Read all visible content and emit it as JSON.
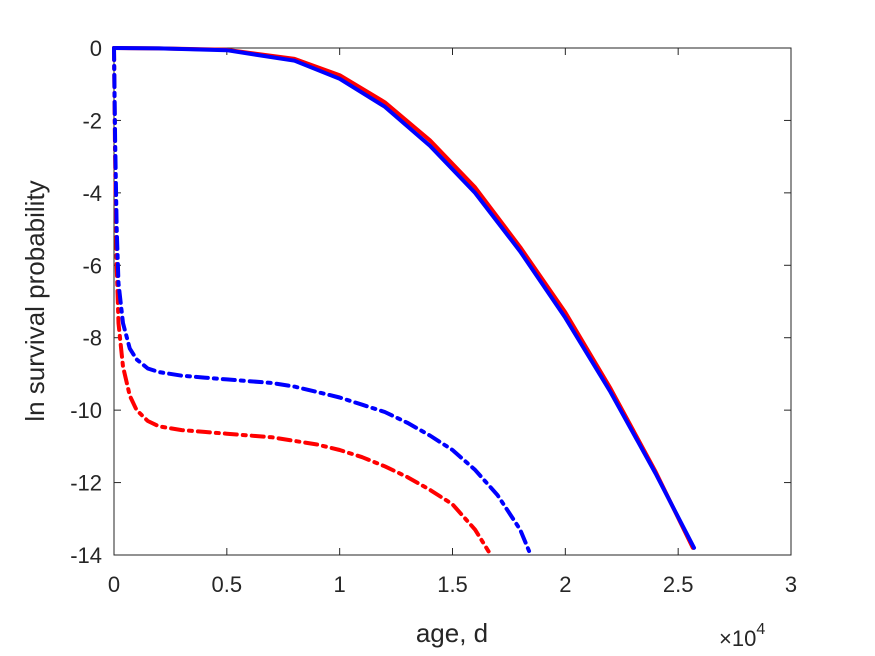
{
  "chart_data": {
    "type": "line",
    "title": "",
    "xlabel": "age, d",
    "ylabel": "ln survival probability",
    "x_exponent_label": "×10",
    "x_exponent_power": "4",
    "xlim": [
      0,
      30000
    ],
    "ylim": [
      -14,
      0
    ],
    "xticks": [
      0,
      5000,
      10000,
      15000,
      20000,
      25000,
      30000
    ],
    "xtick_labels": [
      "0",
      "0.5",
      "1",
      "1.5",
      "2",
      "2.5",
      "3"
    ],
    "yticks": [
      0,
      -2,
      -4,
      -6,
      -8,
      -10,
      -12,
      -14
    ],
    "ytick_labels": [
      "0",
      "-2",
      "-4",
      "-6",
      "-8",
      "-10",
      "-12",
      "-14"
    ],
    "grid": false,
    "legend": "none",
    "series": [
      {
        "color": "#ff0000",
        "style": "solid",
        "points": [
          [
            0,
            0
          ],
          [
            2000,
            -0.01
          ],
          [
            5000,
            -0.05
          ],
          [
            8000,
            -0.3
          ],
          [
            10000,
            -0.75
          ],
          [
            12000,
            -1.5
          ],
          [
            14000,
            -2.55
          ],
          [
            16000,
            -3.85
          ],
          [
            18000,
            -5.5
          ],
          [
            20000,
            -7.3
          ],
          [
            22000,
            -9.4
          ],
          [
            24000,
            -11.7
          ],
          [
            25650,
            -13.8
          ]
        ]
      },
      {
        "color": "#0000ff",
        "style": "solid",
        "points": [
          [
            0,
            0
          ],
          [
            2000,
            -0.01
          ],
          [
            5000,
            -0.06
          ],
          [
            8000,
            -0.35
          ],
          [
            10000,
            -0.85
          ],
          [
            12000,
            -1.62
          ],
          [
            14000,
            -2.7
          ],
          [
            16000,
            -4.0
          ],
          [
            18000,
            -5.62
          ],
          [
            20000,
            -7.45
          ],
          [
            22000,
            -9.5
          ],
          [
            24000,
            -11.75
          ],
          [
            25700,
            -13.8
          ]
        ]
      },
      {
        "color": "#ff0000",
        "style": "dashdot",
        "points": [
          [
            0,
            0
          ],
          [
            50,
            -3.0
          ],
          [
            120,
            -6.0
          ],
          [
            200,
            -7.6
          ],
          [
            400,
            -8.8
          ],
          [
            700,
            -9.6
          ],
          [
            1000,
            -10.0
          ],
          [
            1500,
            -10.3
          ],
          [
            2000,
            -10.45
          ],
          [
            3000,
            -10.55
          ],
          [
            4000,
            -10.6
          ],
          [
            5000,
            -10.65
          ],
          [
            6000,
            -10.7
          ],
          [
            7000,
            -10.75
          ],
          [
            8000,
            -10.85
          ],
          [
            9000,
            -10.95
          ],
          [
            10000,
            -11.1
          ],
          [
            11000,
            -11.3
          ],
          [
            12000,
            -11.55
          ],
          [
            13000,
            -11.85
          ],
          [
            14000,
            -12.2
          ],
          [
            15000,
            -12.6
          ],
          [
            16000,
            -13.3
          ],
          [
            16600,
            -13.9
          ]
        ]
      },
      {
        "color": "#0000ff",
        "style": "dashdot",
        "points": [
          [
            0,
            0
          ],
          [
            50,
            -2.5
          ],
          [
            120,
            -5.0
          ],
          [
            200,
            -6.5
          ],
          [
            400,
            -7.6
          ],
          [
            700,
            -8.3
          ],
          [
            1000,
            -8.6
          ],
          [
            1500,
            -8.85
          ],
          [
            2000,
            -8.95
          ],
          [
            3000,
            -9.05
          ],
          [
            4000,
            -9.1
          ],
          [
            5000,
            -9.15
          ],
          [
            6000,
            -9.2
          ],
          [
            7000,
            -9.25
          ],
          [
            8000,
            -9.35
          ],
          [
            9000,
            -9.5
          ],
          [
            10000,
            -9.65
          ],
          [
            11000,
            -9.85
          ],
          [
            12000,
            -10.05
          ],
          [
            13000,
            -10.35
          ],
          [
            14000,
            -10.7
          ],
          [
            15000,
            -11.1
          ],
          [
            16000,
            -11.65
          ],
          [
            17000,
            -12.35
          ],
          [
            18000,
            -13.3
          ],
          [
            18400,
            -13.9
          ]
        ]
      }
    ]
  }
}
